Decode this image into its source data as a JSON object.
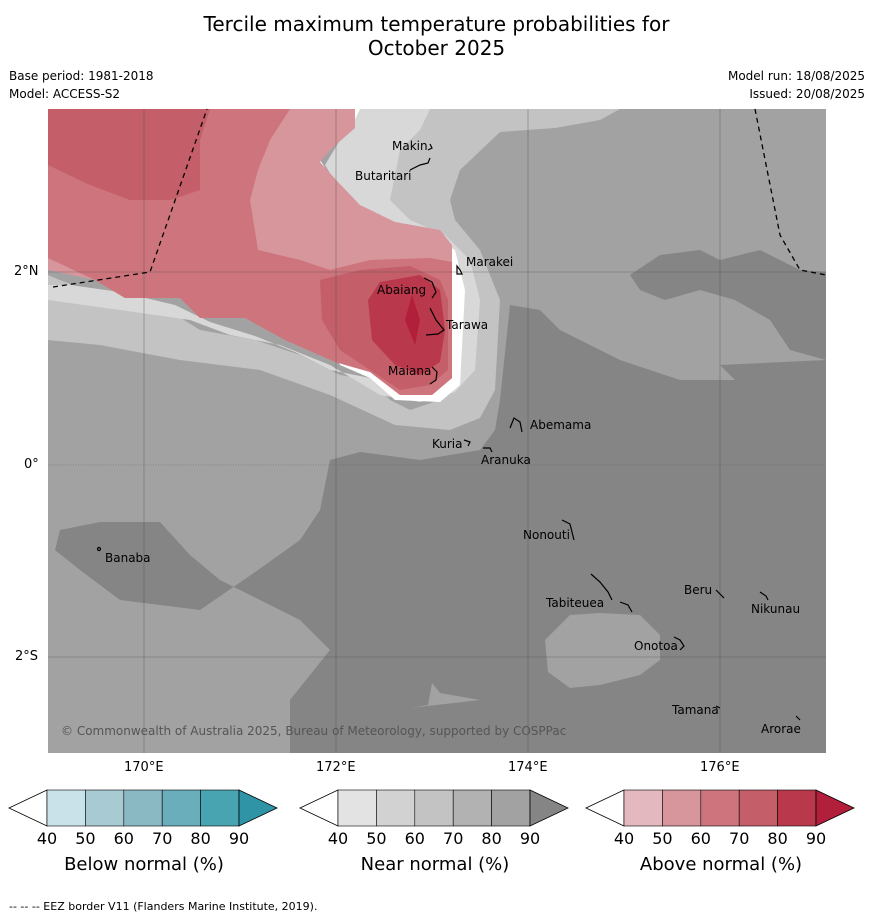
{
  "title_line1": "Tercile maximum temperature probabilities for",
  "title_line2": "October 2025",
  "base_period": "Base period: 1981-2018",
  "model": "Model: ACCESS-S2",
  "model_run": "Model run: 18/08/2025",
  "issued": "Issued: 20/08/2025",
  "lon_labels": {
    "l170": "170°E",
    "l172": "172°E",
    "l174": "174°E",
    "l176": "176°E"
  },
  "lat_labels": {
    "n2": "2°N",
    "eq": "0°",
    "s2": "2°S"
  },
  "places": {
    "makin": "Makin",
    "butaritari": "Butaritari",
    "marakei": "Marakei",
    "abaiang": "Abaiang",
    "tarawa": "Tarawa",
    "maiana": "Maiana",
    "abemama": "Abemama",
    "kuria": "Kuria",
    "aranuka": "Aranuka",
    "banaba": "Banaba",
    "nonouti": "Nonouti",
    "tabiteuea": "Tabiteuea",
    "beru": "Beru",
    "nikunau": "Nikunau",
    "onotoa": "Onotoa",
    "tamana": "Tamana",
    "arorae": "Arorae"
  },
  "copyright": "© Commonwealth of Australia 2025, Bureau of Meteorology, supported by COSPPac",
  "colorbars": {
    "below": {
      "title": "Below normal (%)",
      "ticks": [
        "40",
        "50",
        "60",
        "70",
        "80",
        "90"
      ],
      "colors": [
        "#ffffff",
        "#c9e1e8",
        "#a8cbd3",
        "#8ab9c4",
        "#6aaebb",
        "#49a4b2",
        "#2f95a6"
      ]
    },
    "near": {
      "title": "Near normal (%)",
      "ticks": [
        "40",
        "50",
        "60",
        "70",
        "80",
        "90"
      ],
      "colors": [
        "#ffffff",
        "#e3e3e3",
        "#d2d2d2",
        "#c3c3c3",
        "#b2b2b2",
        "#a2a2a2",
        "#858585"
      ]
    },
    "above": {
      "title": "Above normal (%)",
      "ticks": [
        "40",
        "50",
        "60",
        "70",
        "80",
        "90"
      ],
      "colors": [
        "#ffffff",
        "#e3b9bf",
        "#d7959c",
        "#cd747c",
        "#c45e69",
        "#b9384b",
        "#b21f3b"
      ]
    }
  },
  "footnote": "--  --  -- EEZ border V11 (Flanders Marine Institute, 2019)."
}
